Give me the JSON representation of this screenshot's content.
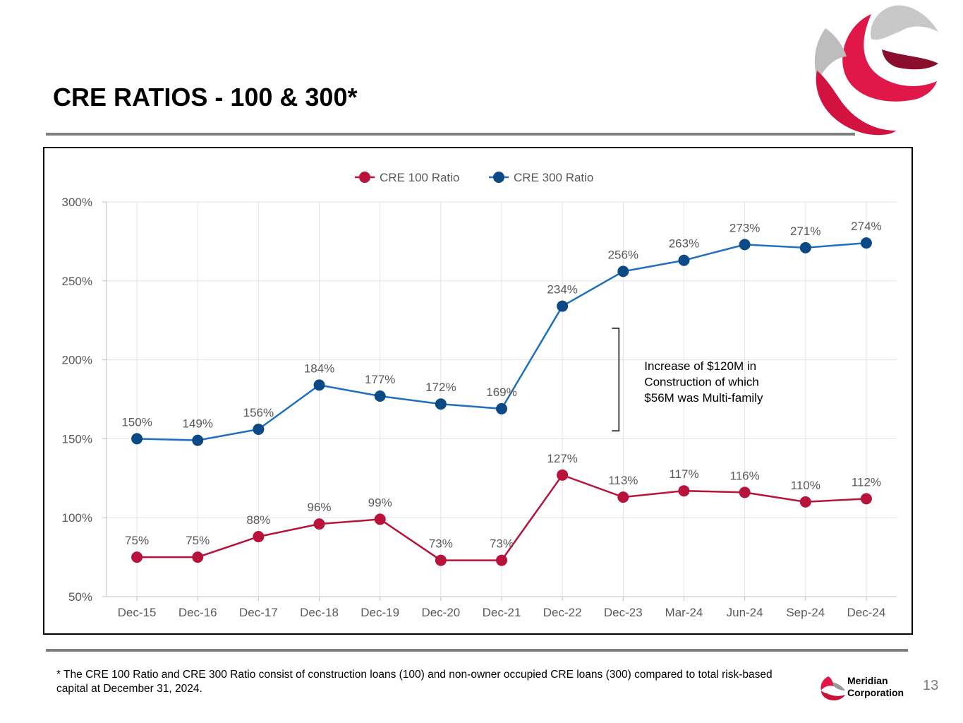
{
  "slide": {
    "title": "CRE RATIOS - 100 & 300*",
    "footnote": "* The CRE 100 Ratio and CRE 300 Ratio consist of construction loans (100) and non-owner occupied CRE loans (300) compared to total risk-based capital at December 31, 2024.",
    "brand_line1": "Meridian",
    "brand_line2": "Corporation",
    "page_number": "13"
  },
  "colors": {
    "cre100": "#b8133a",
    "cre300": "#0d4a85",
    "cre300_line": "#1f6fc0",
    "logo_red": "#e0184a",
    "logo_gray": "#9a9a9a"
  },
  "chart_data": {
    "type": "line",
    "categories": [
      "Dec-15",
      "Dec-16",
      "Dec-17",
      "Dec-18",
      "Dec-19",
      "Dec-20",
      "Dec-21",
      "Dec-22",
      "Dec-23",
      "Mar-24",
      "Jun-24",
      "Sep-24",
      "Dec-24"
    ],
    "series": [
      {
        "name": "CRE 100 Ratio",
        "values": [
          75,
          75,
          88,
          96,
          99,
          73,
          73,
          127,
          113,
          117,
          116,
          110,
          112
        ],
        "labels": [
          "75%",
          "75%",
          "88%",
          "96%",
          "99%",
          "73%",
          "73%",
          "127%",
          "113%",
          "117%",
          "116%",
          "110%",
          "112%"
        ]
      },
      {
        "name": "CRE 300 Ratio",
        "values": [
          150,
          149,
          156,
          184,
          177,
          172,
          169,
          234,
          256,
          263,
          273,
          271,
          274
        ],
        "labels": [
          "150%",
          "149%",
          "156%",
          "184%",
          "177%",
          "172%",
          "169%",
          "234%",
          "256%",
          "263%",
          "273%",
          "271%",
          "274%"
        ]
      }
    ],
    "ylim": [
      50,
      300
    ],
    "yticks": [
      50,
      100,
      150,
      200,
      250,
      300
    ],
    "ytick_labels": [
      "50%",
      "100%",
      "150%",
      "200%",
      "250%",
      "300%"
    ],
    "legend_position": "top-center",
    "grid": true,
    "annotation": {
      "lines": [
        "Increase of $120M in",
        "Construction of which",
        "$56M was Multi-family"
      ],
      "bracket_from": 220,
      "bracket_to": 155
    }
  }
}
